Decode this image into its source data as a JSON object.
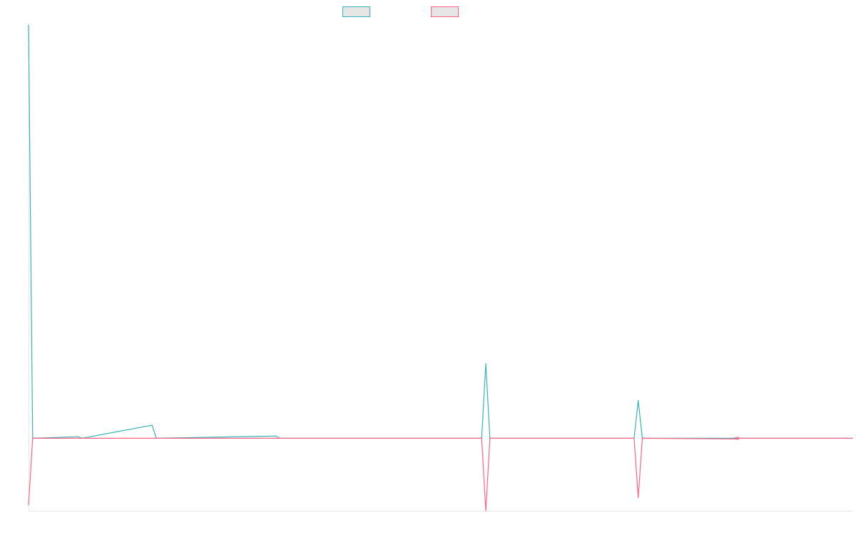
{
  "chart_data": {
    "type": "line",
    "title": "",
    "xlabel": "",
    "ylabel": "",
    "grid": false,
    "legend_position": "top-center",
    "x_count": 101,
    "ylim": [
      -100,
      570
    ],
    "series": [
      {
        "name": "",
        "color": "#36b4b8",
        "fill": "#e6e6e6",
        "points": [
          [
            0,
            570
          ],
          [
            0.5,
            0
          ],
          [
            6,
            2
          ],
          [
            6.5,
            0
          ],
          [
            15,
            18
          ],
          [
            15.5,
            0
          ],
          [
            30,
            3
          ],
          [
            30.5,
            0
          ],
          [
            55,
            0
          ],
          [
            55.5,
            103
          ],
          [
            56,
            0
          ],
          [
            73.5,
            0
          ],
          [
            74,
            52
          ],
          [
            74.5,
            0
          ],
          [
            100,
            0
          ]
        ]
      },
      {
        "name": "",
        "color": "#ff6384",
        "fill": "#e6e6e6",
        "points": [
          [
            0,
            -92
          ],
          [
            0.5,
            0
          ],
          [
            55,
            0
          ],
          [
            55.5,
            -100
          ],
          [
            56,
            0
          ],
          [
            73.5,
            0
          ],
          [
            74,
            -82
          ],
          [
            74.5,
            0
          ],
          [
            86,
            -1
          ],
          [
            86.5,
            0
          ],
          [
            100,
            0
          ]
        ]
      }
    ]
  }
}
